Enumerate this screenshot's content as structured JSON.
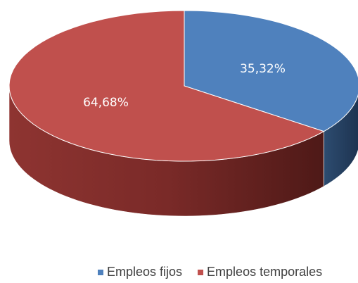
{
  "chart_data": {
    "type": "pie3d",
    "categories": [
      "Empleos fijos",
      "Empleos temporales"
    ],
    "values": [
      35.32,
      64.68
    ],
    "value_labels": [
      "35,32%",
      "64,68%"
    ],
    "colors": [
      "#4f81bd",
      "#c0504d"
    ],
    "legend": "bottom"
  }
}
